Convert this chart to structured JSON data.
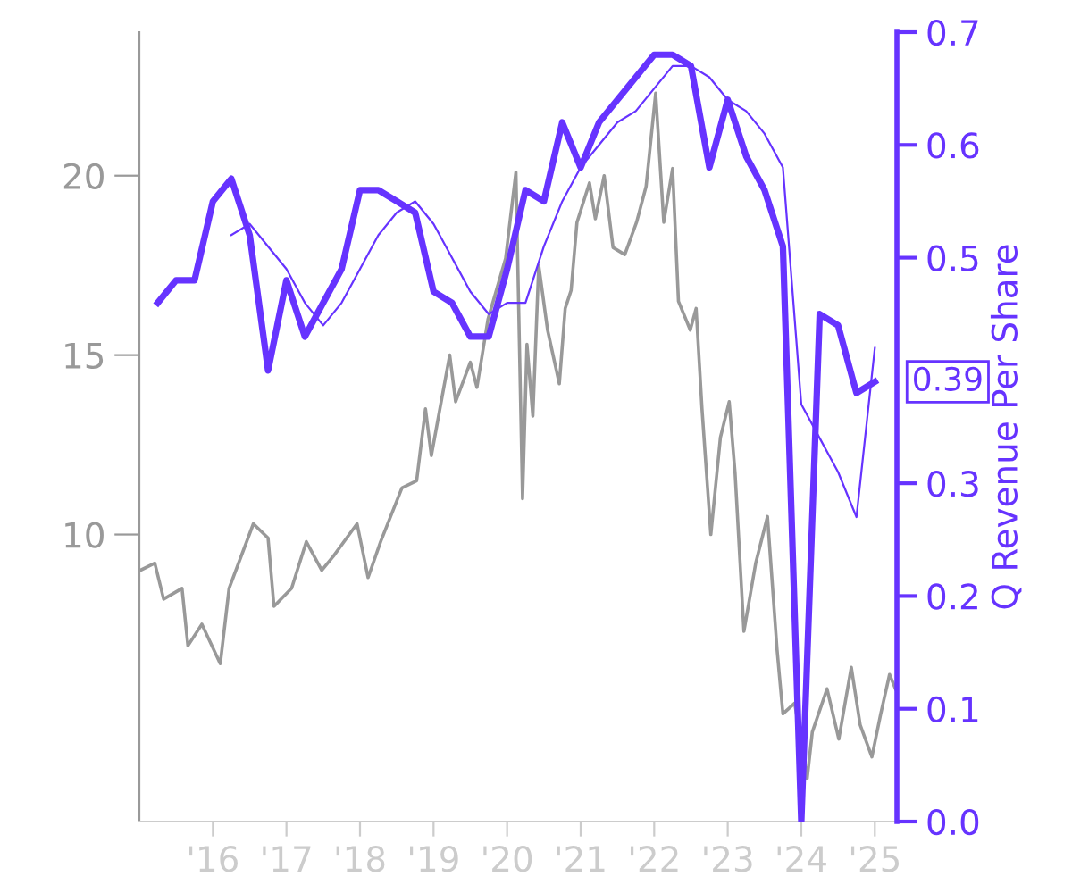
{
  "chart_data": {
    "type": "line",
    "y2label": "Q Revenue Per Share",
    "xlim": [
      2015.0,
      2025.3
    ],
    "xticks": [
      {
        "value": 2016,
        "label": "'16"
      },
      {
        "value": 2017,
        "label": "'17"
      },
      {
        "value": 2018,
        "label": "'18"
      },
      {
        "value": 2019,
        "label": "'19"
      },
      {
        "value": 2020,
        "label": "'20"
      },
      {
        "value": 2021,
        "label": "'21"
      },
      {
        "value": 2022,
        "label": "'22"
      },
      {
        "value": 2023,
        "label": "'23"
      },
      {
        "value": 2024,
        "label": "'24"
      },
      {
        "value": 2025,
        "label": "'25"
      }
    ],
    "ylim": [
      2,
      24
    ],
    "yticks": [
      10,
      15,
      20
    ],
    "y2lim": [
      0,
      0.7
    ],
    "y2ticks": [
      {
        "value": 0,
        "label": "0.0"
      },
      0.1,
      0.2,
      0.3,
      0.5,
      0.6,
      0.7
    ],
    "grid": false,
    "legend": false,
    "marker": "none",
    "series": [
      {
        "color": "#999999",
        "axis": "y",
        "x": [
          2015.01,
          2015.21,
          2015.33,
          2015.58,
          2015.66,
          2015.85,
          2016.1,
          2016.22,
          2016.55,
          2016.75,
          2016.83,
          2017.07,
          2017.27,
          2017.48,
          2017.64,
          2017.96,
          2018.11,
          2018.28,
          2018.57,
          2018.77,
          2018.89,
          2018.97,
          2019.22,
          2019.3,
          2019.5,
          2019.59,
          2019.74,
          2019.98,
          2020.12,
          2020.21,
          2020.27,
          2020.35,
          2020.43,
          2020.55,
          2020.71,
          2020.79,
          2020.87,
          2020.95,
          2021.12,
          2021.2,
          2021.32,
          2021.44,
          2021.6,
          2021.76,
          2021.89,
          2022.02,
          2022.13,
          2022.25,
          2022.33,
          2022.49,
          2022.57,
          2022.65,
          2022.77,
          2022.9,
          2023.02,
          2023.1,
          2023.22,
          2023.38,
          2023.54,
          2023.67,
          2023.75,
          2023.91,
          2024.08,
          2024.15,
          2024.35,
          2024.51,
          2024.68,
          2024.8,
          2024.96,
          2025.08,
          2025.2,
          2025.28
        ],
        "values": [
          9.0,
          9.2,
          8.2,
          8.5,
          6.9,
          7.5,
          6.4,
          8.5,
          10.3,
          9.9,
          8.0,
          8.5,
          9.8,
          9.0,
          9.4,
          10.3,
          8.8,
          9.8,
          11.3,
          11.5,
          13.5,
          12.2,
          15.0,
          13.7,
          14.8,
          14.1,
          16.0,
          17.7,
          20.1,
          11.0,
          15.3,
          13.3,
          17.5,
          15.7,
          14.2,
          16.3,
          16.8,
          18.7,
          19.8,
          18.8,
          20.0,
          18.0,
          17.8,
          18.7,
          19.7,
          22.3,
          18.7,
          20.2,
          16.5,
          15.7,
          16.3,
          13.5,
          10.0,
          12.7,
          13.7,
          11.7,
          7.3,
          9.2,
          10.5,
          6.8,
          5.0,
          5.3,
          3.2,
          4.5,
          5.7,
          4.3,
          6.3,
          4.7,
          3.8,
          5.0,
          6.1,
          5.7
        ]
      },
      {
        "color": "#6633ff",
        "axis": "y2",
        "x": [
          2015.25,
          2015.5,
          2015.75,
          2016.0,
          2016.25,
          2016.5,
          2016.75,
          2017.0,
          2017.25,
          2017.5,
          2017.75,
          2018.0,
          2018.25,
          2018.5,
          2018.75,
          2019.0,
          2019.25,
          2019.5,
          2019.75,
          2020.0,
          2020.25,
          2020.5,
          2020.75,
          2021.0,
          2021.25,
          2021.5,
          2021.75,
          2022.0,
          2022.25,
          2022.5,
          2022.75,
          2023.0,
          2023.25,
          2023.5,
          2023.75,
          2024.0,
          2024.25,
          2024.5,
          2024.75,
          2025.0
        ],
        "values": [
          0.46,
          0.48,
          0.48,
          0.55,
          0.57,
          0.52,
          0.4,
          0.48,
          0.43,
          0.46,
          0.49,
          0.56,
          0.56,
          0.55,
          0.54,
          0.47,
          0.46,
          0.43,
          0.43,
          0.49,
          0.56,
          0.55,
          0.62,
          0.58,
          0.62,
          0.64,
          0.66,
          0.68,
          0.68,
          0.67,
          0.58,
          0.64,
          0.59,
          0.56,
          0.51,
          0.0,
          0.45,
          0.44,
          0.38,
          0.39
        ],
        "value_labels": [
          null,
          null,
          null,
          null,
          null,
          null,
          null,
          null,
          null,
          null,
          null,
          null,
          null,
          null,
          null,
          null,
          null,
          null,
          null,
          null,
          null,
          null,
          null,
          null,
          null,
          null,
          null,
          null,
          null,
          null,
          null,
          null,
          null,
          null,
          null,
          null,
          null,
          null,
          null,
          "0.39"
        ]
      },
      {
        "color": "#6633ff",
        "axis": "y2",
        "x": [
          2016.25,
          2016.5,
          2016.75,
          2017.0,
          2017.25,
          2017.5,
          2017.75,
          2018.0,
          2018.25,
          2018.5,
          2018.75,
          2019.0,
          2019.25,
          2019.5,
          2019.75,
          2020.0,
          2020.25,
          2020.5,
          2020.75,
          2021.0,
          2021.25,
          2021.5,
          2021.75,
          2022.0,
          2022.25,
          2022.5,
          2022.75,
          2023.0,
          2023.25,
          2023.5,
          2023.75,
          2024.0,
          2024.25,
          2024.5,
          2024.75,
          2025.0
        ],
        "values": [
          0.52,
          0.53,
          0.51,
          0.49,
          0.46,
          0.44,
          0.46,
          0.49,
          0.52,
          0.54,
          0.55,
          0.53,
          0.5,
          0.47,
          0.45,
          0.46,
          0.46,
          0.51,
          0.55,
          0.58,
          0.6,
          0.62,
          0.63,
          0.65,
          0.67,
          0.67,
          0.66,
          0.64,
          0.63,
          0.61,
          0.58,
          0.37,
          0.34,
          0.31,
          0.27,
          0.42
        ]
      }
    ]
  }
}
